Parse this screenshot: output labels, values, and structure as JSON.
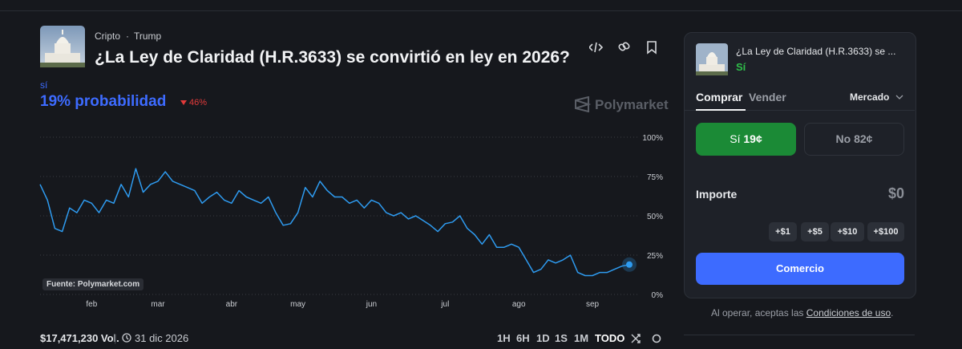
{
  "header": {
    "category": "Cripto",
    "tag": "Trump",
    "title": "¿La Ley de Claridad (H.R.3633) se convirtió en ley en 2026?",
    "outcome": "sí",
    "probability": "19% probabilidad",
    "change": "46%",
    "brand": "Polymarket"
  },
  "chart_data": {
    "type": "line",
    "source": "Fuente: Polymarket.com",
    "categories": [
      null,
      null,
      null,
      null,
      null,
      null,
      null,
      "feb",
      null,
      null,
      null,
      null,
      null,
      null,
      null,
      null,
      "mar",
      null,
      null,
      null,
      null,
      null,
      null,
      null,
      null,
      null,
      "abr",
      null,
      null,
      null,
      null,
      null,
      null,
      null,
      null,
      "may",
      null,
      null,
      null,
      null,
      null,
      null,
      null,
      null,
      null,
      "jun",
      null,
      null,
      null,
      null,
      null,
      null,
      null,
      null,
      null,
      "jul",
      null,
      null,
      null,
      null,
      null,
      null,
      null,
      null,
      null,
      "ago",
      null,
      null,
      null,
      null,
      null,
      null,
      null,
      null,
      null,
      "sep",
      null,
      null,
      null,
      null,
      null
    ],
    "series": [
      {
        "name": "sí",
        "color": "#2e9bf0",
        "values": [
          70,
          60,
          42,
          40,
          55,
          52,
          60,
          58,
          52,
          60,
          58,
          70,
          62,
          80,
          65,
          70,
          72,
          78,
          72,
          70,
          68,
          66,
          58,
          62,
          65,
          60,
          58,
          66,
          62,
          60,
          58,
          62,
          52,
          44,
          45,
          52,
          68,
          62,
          72,
          66,
          62,
          62,
          58,
          60,
          55,
          60,
          58,
          52,
          50,
          52,
          48,
          50,
          47,
          44,
          40,
          45,
          46,
          50,
          42,
          38,
          32,
          38,
          30,
          30,
          32,
          30,
          22,
          14,
          16,
          22,
          20,
          22,
          25,
          14,
          12,
          12,
          14,
          14,
          16,
          18,
          19
        ]
      }
    ],
    "ylim": [
      0,
      100
    ],
    "yticks": [
      {
        "value": 0,
        "label": "0%"
      },
      {
        "value": 25,
        "label": "25%"
      },
      {
        "value": 50,
        "label": "50%"
      },
      {
        "value": 75,
        "label": "75%"
      },
      {
        "value": 100,
        "label": "100%"
      }
    ],
    "grid": true
  },
  "footer": {
    "volume": "$17,471,230 Vol.",
    "end_date": "31 dic 2026",
    "ranges": [
      "1H",
      "6H",
      "1D",
      "1S",
      "1M",
      "TODO"
    ]
  },
  "trade_panel": {
    "title": "¿La Ley de Claridad (H.R.3633) se ...",
    "outcome": "Sí",
    "tabs": [
      "Comprar",
      "Vender"
    ],
    "order_type": "Mercado",
    "yes_label": "Sí",
    "yes_price": "19¢",
    "no_button": "No 82¢",
    "amount_label": "Importe",
    "amount": "$0",
    "increments": [
      "+$1",
      "+$5",
      "+$10",
      "+$100"
    ],
    "submit": "Comercio",
    "terms_prefix": "Al operar, aceptas las",
    "terms_link": "Condiciones de uso",
    "terms_suffix": "."
  }
}
